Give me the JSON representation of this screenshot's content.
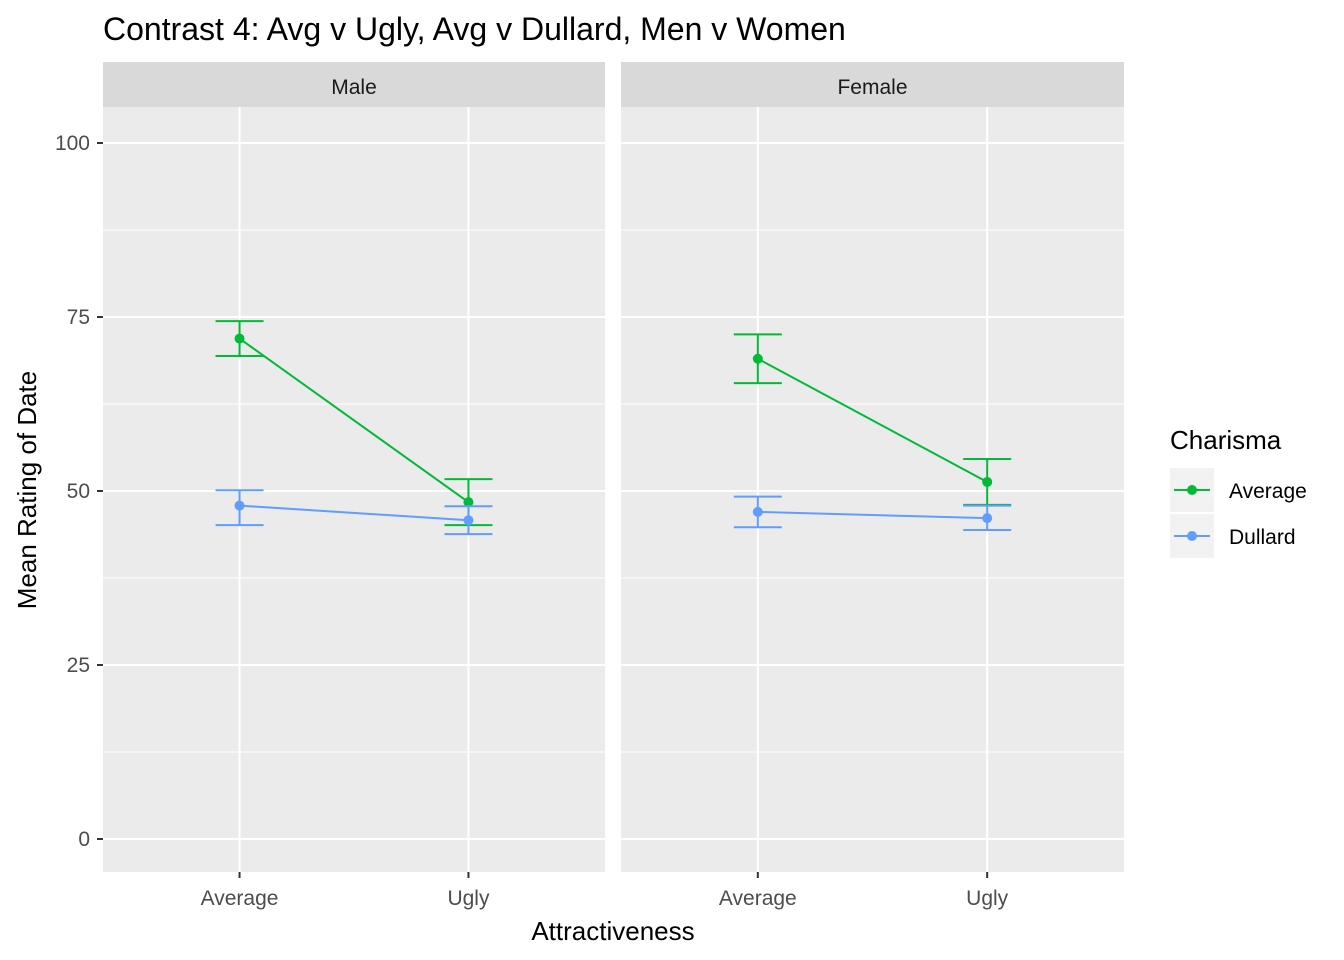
{
  "chart_data": {
    "type": "line",
    "title": "Contrast 4: Avg v Ugly, Avg v Dullard, Men v Women",
    "xlabel": "Attractiveness",
    "ylabel": "Mean Rating of Date",
    "facets": [
      "Male",
      "Female"
    ],
    "categories": [
      "Average",
      "Ugly"
    ],
    "ylim": [
      -5,
      105
    ],
    "yticks": [
      0,
      25,
      50,
      75,
      100
    ],
    "grid": true,
    "legend": {
      "title": "Charisma",
      "placement": "right",
      "entries": [
        "Average",
        "Dullard"
      ]
    },
    "series": [
      {
        "name": "Average",
        "color": "#00BA38",
        "facet_values": {
          "Male": [
            {
              "x": "Average",
              "y": 71.9,
              "ymin": 69.4,
              "ymax": 74.4
            },
            {
              "x": "Ugly",
              "y": 48.4,
              "ymin": 45.1,
              "ymax": 51.7
            }
          ],
          "Female": [
            {
              "x": "Average",
              "y": 69.0,
              "ymin": 65.5,
              "ymax": 72.5
            },
            {
              "x": "Ugly",
              "y": 51.3,
              "ymin": 48.0,
              "ymax": 54.6
            }
          ]
        }
      },
      {
        "name": "Dullard",
        "color": "#619CFF",
        "facet_values": {
          "Male": [
            {
              "x": "Average",
              "y": 47.9,
              "ymin": 45.1,
              "ymax": 50.1
            },
            {
              "x": "Ugly",
              "y": 45.8,
              "ymin": 43.8,
              "ymax": 47.8
            }
          ],
          "Female": [
            {
              "x": "Average",
              "y": 47.0,
              "ymin": 44.8,
              "ymax": 49.2
            },
            {
              "x": "Ugly",
              "y": 46.1,
              "ymin": 44.4,
              "ymax": 47.9
            }
          ]
        }
      }
    ]
  }
}
